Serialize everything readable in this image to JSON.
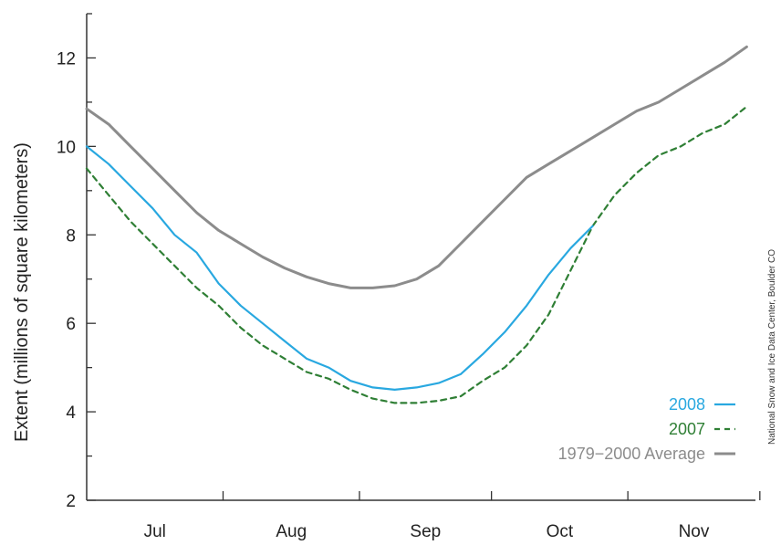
{
  "chart_data": {
    "type": "line",
    "title": "",
    "xlabel": "",
    "ylabel": "Extent (millions of square kilometers)",
    "ylim": [
      2,
      13
    ],
    "yticks": [
      "2",
      "4",
      "6",
      "8",
      "10",
      "12"
    ],
    "xlim": [
      0,
      152
    ],
    "month_labels": [
      "Jul",
      "Aug",
      "Sep",
      "Oct",
      "Nov"
    ],
    "grid": false,
    "legend_position": "bottom-right",
    "credit": "National Snow and Ice Data Center, Boulder CO",
    "series": [
      {
        "name": "2008",
        "color": "#29a8e0",
        "style": "solid",
        "x": [
          0,
          5,
          10,
          15,
          20,
          25,
          30,
          35,
          40,
          45,
          50,
          55,
          60,
          65,
          70,
          75,
          80,
          85,
          90,
          95,
          100,
          105,
          110,
          115
        ],
        "values": [
          10.0,
          9.6,
          9.1,
          8.6,
          8.0,
          7.6,
          6.9,
          6.4,
          6.0,
          5.6,
          5.2,
          5.0,
          4.7,
          4.55,
          4.5,
          4.55,
          4.65,
          4.85,
          5.3,
          5.8,
          6.4,
          7.1,
          7.7,
          8.2
        ]
      },
      {
        "name": "2007",
        "color": "#2f7f35",
        "style": "dashed",
        "x": [
          0,
          5,
          10,
          15,
          20,
          25,
          30,
          35,
          40,
          45,
          50,
          55,
          60,
          65,
          70,
          75,
          80,
          85,
          90,
          95,
          100,
          105,
          110,
          115,
          120,
          125,
          130,
          135,
          140,
          145,
          150
        ],
        "values": [
          9.5,
          8.9,
          8.3,
          7.8,
          7.3,
          6.8,
          6.4,
          5.9,
          5.5,
          5.2,
          4.9,
          4.75,
          4.5,
          4.3,
          4.2,
          4.2,
          4.25,
          4.35,
          4.7,
          5.0,
          5.5,
          6.2,
          7.2,
          8.2,
          8.9,
          9.4,
          9.8,
          10.0,
          10.3,
          10.5,
          10.9
        ]
      },
      {
        "name": "1979−2000 Average",
        "color": "#8c8c8c",
        "style": "solid",
        "x": [
          0,
          5,
          10,
          15,
          20,
          25,
          30,
          35,
          40,
          45,
          50,
          55,
          60,
          65,
          70,
          75,
          80,
          85,
          90,
          95,
          100,
          105,
          110,
          115,
          120,
          125,
          130,
          135,
          140,
          145,
          150
        ],
        "values": [
          10.85,
          10.5,
          10.0,
          9.5,
          9.0,
          8.5,
          8.1,
          7.8,
          7.5,
          7.25,
          7.05,
          6.9,
          6.8,
          6.8,
          6.85,
          7.0,
          7.3,
          7.8,
          8.3,
          8.8,
          9.3,
          9.6,
          9.9,
          10.2,
          10.5,
          10.8,
          11.0,
          11.3,
          11.6,
          11.9,
          12.25
        ]
      }
    ]
  }
}
